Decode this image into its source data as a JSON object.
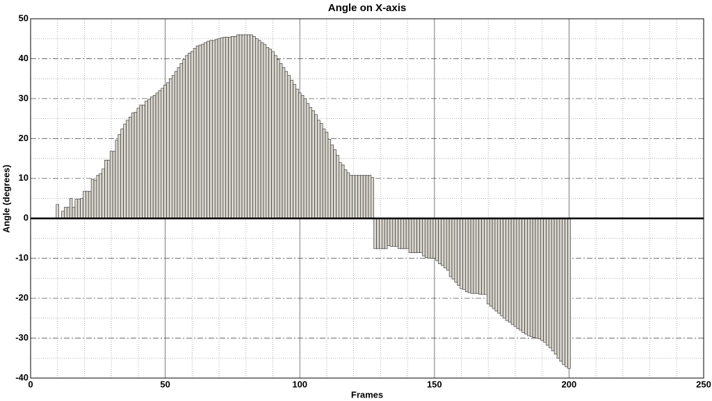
{
  "chart_data": {
    "type": "bar",
    "title": "Angle on X-axis",
    "xlabel": "Frames",
    "ylabel": "Angle (degrees)",
    "x": [
      10,
      11,
      12,
      13,
      14,
      15,
      16,
      17,
      18,
      19,
      20,
      21,
      22,
      23,
      24,
      25,
      26,
      27,
      28,
      29,
      30,
      31,
      32,
      33,
      34,
      35,
      36,
      37,
      38,
      39,
      40,
      41,
      42,
      43,
      44,
      45,
      46,
      47,
      48,
      49,
      50,
      51,
      52,
      53,
      54,
      55,
      56,
      57,
      58,
      59,
      60,
      61,
      62,
      63,
      64,
      65,
      66,
      67,
      68,
      69,
      70,
      71,
      72,
      73,
      74,
      75,
      76,
      77,
      78,
      79,
      80,
      81,
      82,
      83,
      84,
      85,
      86,
      87,
      88,
      89,
      90,
      91,
      92,
      93,
      94,
      95,
      96,
      97,
      98,
      99,
      100,
      101,
      102,
      103,
      104,
      105,
      106,
      107,
      108,
      109,
      110,
      111,
      112,
      113,
      114,
      115,
      116,
      117,
      118,
      119,
      120,
      121,
      122,
      123,
      124,
      125,
      126,
      127,
      128,
      129,
      130,
      131,
      132,
      133,
      134,
      135,
      136,
      137,
      138,
      139,
      140,
      141,
      142,
      143,
      144,
      145,
      146,
      147,
      148,
      149,
      150,
      151,
      152,
      153,
      154,
      155,
      156,
      157,
      158,
      159,
      160,
      161,
      162,
      163,
      164,
      165,
      166,
      167,
      168,
      169,
      170,
      171,
      172,
      173,
      174,
      175,
      176,
      177,
      178,
      179,
      180,
      181,
      182,
      183,
      184,
      185,
      186,
      187,
      188,
      189,
      190,
      191,
      192,
      193,
      194,
      195,
      196,
      197,
      198,
      199,
      200
    ],
    "values": [
      3.5,
      0,
      1.8,
      2.8,
      2.8,
      5,
      2.8,
      4.8,
      4.8,
      5,
      6.8,
      6.8,
      6.8,
      9.8,
      9.6,
      10.8,
      11.2,
      12.4,
      14.6,
      14.6,
      16.8,
      16.8,
      19.6,
      21,
      22.4,
      23.6,
      24.6,
      25.4,
      26.4,
      26.6,
      27.6,
      28.4,
      28.4,
      29.4,
      29.8,
      30.4,
      30.8,
      31.4,
      32,
      32.6,
      33.4,
      34,
      35,
      35.8,
      36.8,
      37.8,
      38.8,
      39.8,
      40.8,
      41.4,
      41.8,
      42.6,
      43.2,
      43.4,
      43.6,
      44,
      44.4,
      44.6,
      44.6,
      44.8,
      45,
      45.2,
      45.4,
      45.4,
      45.4,
      45.6,
      45.6,
      46,
      46,
      46,
      46,
      46,
      46,
      45.6,
      45,
      44.6,
      44,
      43.6,
      42.8,
      42.4,
      41.8,
      40.8,
      39.8,
      38.8,
      37.8,
      36.8,
      35.8,
      34.6,
      33.6,
      32.4,
      31.4,
      30.8,
      30,
      28.8,
      27.8,
      27,
      26,
      24.6,
      23.8,
      22.4,
      21.6,
      19.8,
      18.4,
      17.2,
      15.8,
      14,
      13.4,
      12.2,
      11.4,
      10.8,
      10.8,
      10.8,
      10.8,
      10.8,
      10.8,
      10.8,
      10.8,
      10.2,
      -7.6,
      -7.6,
      -7.6,
      -7.6,
      -7.6,
      -6.8,
      -7,
      -7,
      -7,
      -7.6,
      -7.6,
      -7.6,
      -7.6,
      -8.6,
      -8.6,
      -8.6,
      -8.6,
      -8.6,
      -9.4,
      -9.8,
      -10,
      -10,
      -10,
      -10.6,
      -11.4,
      -11.8,
      -12.4,
      -13,
      -14.6,
      -15.2,
      -16,
      -16.8,
      -17.6,
      -17.8,
      -18.4,
      -18.6,
      -18.8,
      -18.8,
      -18.8,
      -19,
      -19,
      -19,
      -21.4,
      -22,
      -22.6,
      -23.2,
      -23.8,
      -24.4,
      -25,
      -25.6,
      -26,
      -26.6,
      -27,
      -27.6,
      -28,
      -28.6,
      -29,
      -29.4,
      -29.6,
      -29.8,
      -30,
      -30.2,
      -30.6,
      -31,
      -31.8,
      -32.4,
      -33.2,
      -34,
      -35,
      -35.8,
      -36.6,
      -37.2,
      -37.6
    ],
    "color": "#d9d5cd",
    "xlim": [
      0,
      250
    ],
    "xticks": [
      0,
      50,
      100,
      150,
      200,
      250
    ],
    "ylim": [
      -40,
      50
    ],
    "yticks": [
      -40,
      -30,
      -20,
      -10,
      0,
      10,
      20,
      30,
      40,
      50
    ],
    "xminorticks": [
      10,
      20,
      30,
      40,
      60,
      70,
      80,
      90,
      110,
      120,
      130,
      140,
      160,
      170,
      180,
      190,
      210,
      220,
      230,
      240
    ],
    "yminorticks": [
      -35,
      -25,
      -15,
      -5,
      5,
      15,
      25,
      35,
      45
    ],
    "grid": true
  }
}
